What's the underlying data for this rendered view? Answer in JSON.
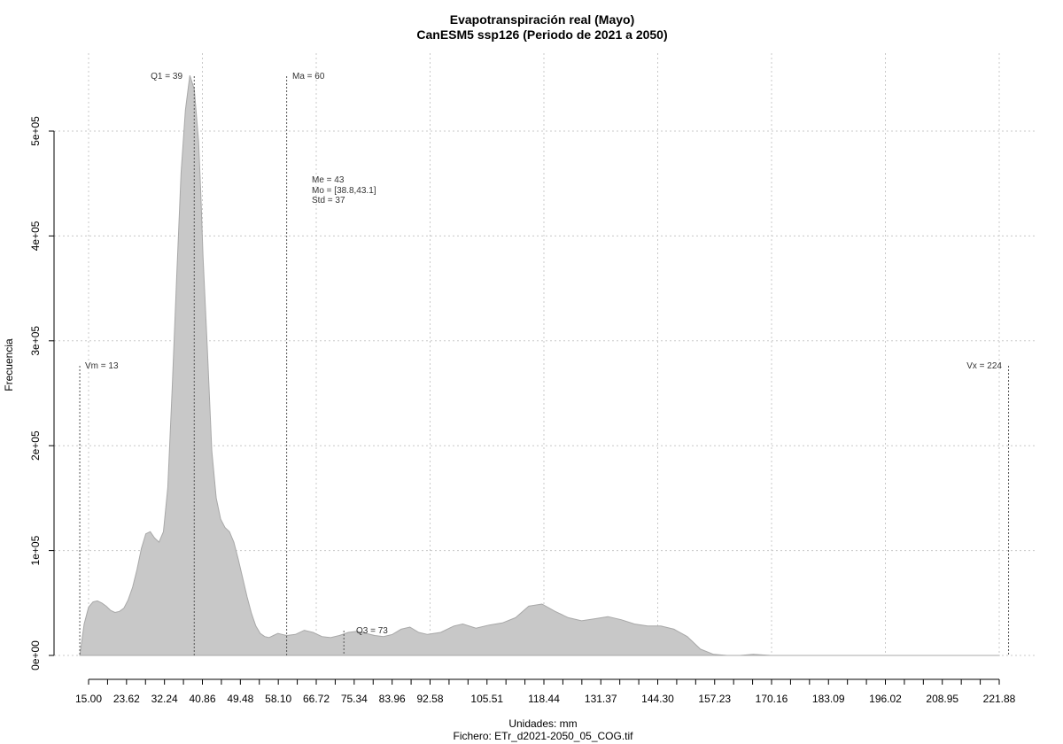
{
  "chart_data": {
    "type": "area",
    "title": "Evapotranspiración real (Mayo)",
    "subtitle": "CanESM5 ssp126 (Periodo de 2021 a 2050)",
    "xlabel": "Unidades: mm",
    "ylabel": "Frecuencia",
    "footer": "Fichero: ETr_d2021-2050_05_COG.tif",
    "xlim": [
      15.0,
      221.88
    ],
    "ylim": [
      0,
      550000
    ],
    "x_ticks": [
      "15.00",
      "23.62",
      "32.24",
      "40.86",
      "49.48",
      "58.10",
      "66.72",
      "75.34",
      "83.96",
      "92.58",
      "105.51",
      "118.44",
      "131.37",
      "144.30",
      "157.23",
      "170.16",
      "183.09",
      "196.02",
      "208.95",
      "221.88"
    ],
    "y_ticks": [
      {
        "value": 0,
        "label": "0e+00"
      },
      {
        "value": 100000,
        "label": "1e+05"
      },
      {
        "value": 200000,
        "label": "2e+05"
      },
      {
        "value": 300000,
        "label": "3e+05"
      },
      {
        "value": 400000,
        "label": "4e+05"
      },
      {
        "value": 500000,
        "label": "5e+05"
      }
    ],
    "grid": true,
    "fill_color": "#c8c8c8",
    "series": [
      {
        "x": [
          13,
          14,
          15,
          16,
          17,
          18,
          19,
          20,
          21,
          22,
          23,
          24,
          25,
          26,
          27,
          28,
          29,
          30,
          31,
          32,
          33,
          34,
          35,
          36,
          37,
          38,
          39,
          40,
          40.5,
          41,
          42,
          43,
          44,
          45,
          46,
          47,
          48,
          49,
          50,
          51,
          52,
          53,
          54,
          55,
          56,
          57,
          58,
          59,
          60,
          62,
          64,
          66,
          68,
          70,
          72,
          74,
          76,
          78,
          80,
          82,
          84,
          86,
          88,
          90,
          92,
          95,
          98,
          100,
          103,
          106,
          109,
          112,
          115,
          118,
          121,
          124,
          127,
          130,
          133,
          136,
          139,
          142,
          145,
          148,
          151,
          154,
          157,
          160,
          163,
          166,
          170,
          180,
          190,
          200,
          210,
          220,
          222
        ],
        "y": [
          0,
          30000,
          46000,
          51000,
          52000,
          50000,
          47000,
          43000,
          41000,
          42000,
          45000,
          53000,
          65000,
          82000,
          102000,
          116000,
          118000,
          112000,
          108000,
          118000,
          160000,
          255000,
          360000,
          460000,
          520000,
          553000,
          540000,
          490000,
          440000,
          380000,
          290000,
          195000,
          150000,
          130000,
          122000,
          118000,
          108000,
          92000,
          74000,
          56000,
          40000,
          28000,
          21000,
          18000,
          17000,
          19000,
          21000,
          20000,
          19000,
          20000,
          24000,
          22000,
          18000,
          17000,
          19000,
          22000,
          23000,
          21000,
          19000,
          18000,
          20000,
          25000,
          27000,
          22000,
          20000,
          22000,
          28000,
          30000,
          26000,
          29000,
          31000,
          36000,
          47000,
          49000,
          42000,
          36000,
          33000,
          35000,
          37000,
          34000,
          30000,
          28000,
          28000,
          25000,
          18000,
          6000,
          1000,
          0,
          0,
          1000,
          0,
          0,
          0,
          0,
          0,
          0,
          0
        ]
      }
    ],
    "annotations": {
      "vm": {
        "x": 13,
        "label": "Vm = 13"
      },
      "q1": {
        "x": 39,
        "label": "Q1 = 39"
      },
      "ma": {
        "x": 60,
        "label": "Ma = 60"
      },
      "q3": {
        "x": 73,
        "label": "Q3 = 73"
      },
      "vx": {
        "x": 224,
        "label": "Vx = 224"
      },
      "stats": [
        "Me = 43",
        "Mo = [38.8,43.1]",
        "Std = 37"
      ]
    }
  }
}
